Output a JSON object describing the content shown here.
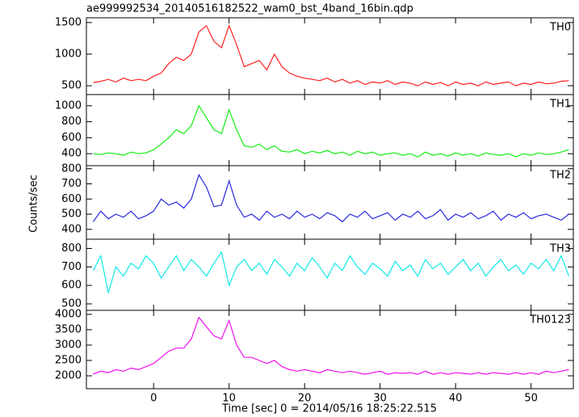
{
  "title": "ae999992534_20140516182522_wam0_bst_4band_16bin.qdp",
  "x_label": "Time [sec] 0 = 2014/05/16 18:25:22.515",
  "y_label": "Counts/sec",
  "chart_data": [
    {
      "type": "line",
      "xlim": [
        -8.9,
        55.6
      ],
      "ylim": [
        360,
        1575
      ],
      "yticks": [
        500,
        1000,
        1500
      ],
      "x": [
        -8,
        -7,
        -6,
        -5,
        -4,
        -3,
        -2,
        -1,
        0,
        1,
        2,
        3,
        4,
        5,
        6,
        7,
        8,
        9,
        10,
        11,
        12,
        13,
        14,
        15,
        16,
        17,
        18,
        19,
        20,
        21,
        22,
        23,
        24,
        25,
        26,
        27,
        28,
        29,
        30,
        31,
        32,
        33,
        34,
        35,
        36,
        37,
        38,
        39,
        40,
        41,
        42,
        43,
        44,
        45,
        46,
        47,
        48,
        49,
        50,
        51,
        52,
        53,
        54,
        55
      ],
      "series": [
        {
          "name": "TH0",
          "color": "#ff2020",
          "values": [
            550,
            570,
            600,
            560,
            620,
            580,
            600,
            580,
            650,
            700,
            850,
            950,
            900,
            1000,
            1350,
            1450,
            1200,
            1100,
            1450,
            1150,
            800,
            850,
            900,
            750,
            1000,
            800,
            700,
            650,
            620,
            600,
            580,
            620,
            560,
            600,
            540,
            580,
            520,
            560,
            540,
            580,
            520,
            560,
            540,
            500,
            560,
            520,
            550,
            500,
            560,
            520,
            540,
            500,
            560,
            520,
            540,
            560,
            500,
            540,
            520,
            560,
            530,
            540,
            570,
            580
          ]
        }
      ]
    },
    {
      "type": "line",
      "xlim": [
        -8.9,
        55.6
      ],
      "ylim": [
        250,
        1140
      ],
      "yticks": [
        400,
        600,
        800,
        1000
      ],
      "x": [
        -8,
        -7,
        -6,
        -5,
        -4,
        -3,
        -2,
        -1,
        0,
        1,
        2,
        3,
        4,
        5,
        6,
        7,
        8,
        9,
        10,
        11,
        12,
        13,
        14,
        15,
        16,
        17,
        18,
        19,
        20,
        21,
        22,
        23,
        24,
        25,
        26,
        27,
        28,
        29,
        30,
        31,
        32,
        33,
        34,
        35,
        36,
        37,
        38,
        39,
        40,
        41,
        42,
        43,
        44,
        45,
        46,
        47,
        48,
        49,
        50,
        51,
        52,
        53,
        54,
        55
      ],
      "series": [
        {
          "name": "TH1",
          "color": "#10ee10",
          "values": [
            400,
            390,
            410,
            400,
            380,
            420,
            400,
            410,
            450,
            520,
            600,
            700,
            650,
            750,
            1000,
            850,
            700,
            650,
            950,
            700,
            500,
            480,
            520,
            450,
            500,
            430,
            420,
            450,
            400,
            430,
            410,
            440,
            400,
            420,
            380,
            430,
            400,
            420,
            380,
            400,
            410,
            380,
            400,
            360,
            420,
            380,
            400,
            370,
            410,
            380,
            400,
            370,
            410,
            390,
            380,
            400,
            360,
            400,
            380,
            410,
            390,
            400,
            420,
            450
          ]
        }
      ]
    },
    {
      "type": "line",
      "xlim": [
        -8.9,
        55.6
      ],
      "ylim": [
        335,
        820
      ],
      "yticks": [
        400,
        500,
        600,
        700,
        800
      ],
      "x": [
        -8,
        -7,
        -6,
        -5,
        -4,
        -3,
        -2,
        -1,
        0,
        1,
        2,
        3,
        4,
        5,
        6,
        7,
        8,
        9,
        10,
        11,
        12,
        13,
        14,
        15,
        16,
        17,
        18,
        19,
        20,
        21,
        22,
        23,
        24,
        25,
        26,
        27,
        28,
        29,
        30,
        31,
        32,
        33,
        34,
        35,
        36,
        37,
        38,
        39,
        40,
        41,
        42,
        43,
        44,
        45,
        46,
        47,
        48,
        49,
        50,
        51,
        52,
        53,
        54,
        55
      ],
      "series": [
        {
          "name": "TH2",
          "color": "#2a2ae0",
          "values": [
            450,
            520,
            470,
            500,
            480,
            520,
            470,
            490,
            520,
            600,
            560,
            580,
            540,
            600,
            760,
            680,
            550,
            560,
            720,
            560,
            480,
            500,
            460,
            520,
            480,
            500,
            470,
            520,
            480,
            500,
            470,
            510,
            490,
            450,
            500,
            480,
            520,
            470,
            490,
            510,
            460,
            500,
            480,
            520,
            470,
            490,
            530,
            460,
            500,
            480,
            510,
            470,
            490,
            520,
            460,
            500,
            480,
            510,
            470,
            490,
            500,
            480,
            460,
            500
          ]
        }
      ]
    },
    {
      "type": "line",
      "xlim": [
        -8.9,
        55.6
      ],
      "ylim": [
        465,
        850
      ],
      "yticks": [
        500,
        600,
        700,
        800
      ],
      "x": [
        -8,
        -7,
        -6,
        -5,
        -4,
        -3,
        -2,
        -1,
        0,
        1,
        2,
        3,
        4,
        5,
        6,
        7,
        8,
        9,
        10,
        11,
        12,
        13,
        14,
        15,
        16,
        17,
        18,
        19,
        20,
        21,
        22,
        23,
        24,
        25,
        26,
        27,
        28,
        29,
        30,
        31,
        32,
        33,
        34,
        35,
        36,
        37,
        38,
        39,
        40,
        41,
        42,
        43,
        44,
        45,
        46,
        47,
        48,
        49,
        50,
        51,
        52,
        53,
        54,
        55
      ],
      "series": [
        {
          "name": "TH3",
          "color": "#10e8e8",
          "values": [
            680,
            760,
            560,
            700,
            650,
            720,
            690,
            760,
            720,
            640,
            700,
            760,
            680,
            740,
            700,
            650,
            720,
            780,
            600,
            700,
            740,
            680,
            720,
            660,
            740,
            700,
            650,
            720,
            680,
            750,
            700,
            640,
            720,
            680,
            760,
            700,
            660,
            720,
            690,
            650,
            730,
            680,
            710,
            650,
            740,
            690,
            720,
            660,
            700,
            740,
            680,
            720,
            650,
            700,
            740,
            680,
            710,
            660,
            720,
            690,
            740,
            680,
            760,
            650
          ]
        }
      ]
    },
    {
      "type": "line",
      "xlim": [
        -8.9,
        55.6
      ],
      "ylim": [
        1580,
        4130
      ],
      "yticks": [
        2000,
        2500,
        3000,
        3500,
        4000
      ],
      "xticks": [
        0,
        10,
        20,
        30,
        40,
        50
      ],
      "x": [
        -8,
        -7,
        -6,
        -5,
        -4,
        -3,
        -2,
        -1,
        0,
        1,
        2,
        3,
        4,
        5,
        6,
        7,
        8,
        9,
        10,
        11,
        12,
        13,
        14,
        15,
        16,
        17,
        18,
        19,
        20,
        21,
        22,
        23,
        24,
        25,
        26,
        27,
        28,
        29,
        30,
        31,
        32,
        33,
        34,
        35,
        36,
        37,
        38,
        39,
        40,
        41,
        42,
        43,
        44,
        45,
        46,
        47,
        48,
        49,
        50,
        51,
        52,
        53,
        54,
        55
      ],
      "series": [
        {
          "name": "TH0123",
          "color": "#ee10ee",
          "values": [
            2050,
            2150,
            2100,
            2200,
            2150,
            2250,
            2200,
            2300,
            2400,
            2600,
            2800,
            2900,
            2900,
            3200,
            3900,
            3600,
            3300,
            3200,
            3800,
            3000,
            2600,
            2600,
            2500,
            2400,
            2500,
            2300,
            2200,
            2150,
            2200,
            2150,
            2100,
            2200,
            2150,
            2100,
            2150,
            2100,
            2050,
            2100,
            2150,
            2050,
            2100,
            2080,
            2100,
            2050,
            2150,
            2050,
            2100,
            2050,
            2100,
            2080,
            2050,
            2100,
            2050,
            2100,
            2080,
            2050,
            2100,
            2050,
            2100,
            2050,
            2150,
            2100,
            2150,
            2200
          ]
        }
      ]
    }
  ]
}
